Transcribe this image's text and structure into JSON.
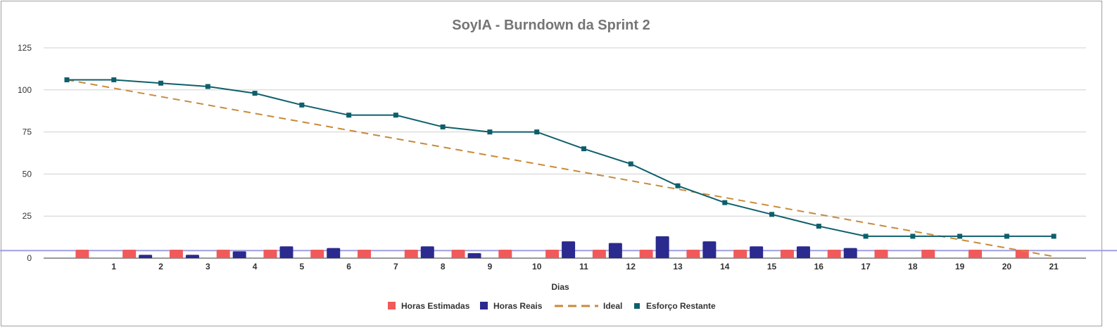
{
  "chart_data": {
    "type": "bar",
    "title": "SoyIA - Burndown da Sprint 2",
    "xlabel": "Dias",
    "ylabel": "",
    "ylim": [
      0,
      125
    ],
    "yticks": [
      0,
      25,
      50,
      75,
      100,
      125
    ],
    "categories": [
      "",
      "1",
      "2",
      "3",
      "4",
      "5",
      "6",
      "7",
      "8",
      "9",
      "10",
      "11",
      "12",
      "13",
      "14",
      "15",
      "16",
      "17",
      "18",
      "19",
      "20",
      "21"
    ],
    "legend_position": "bottom",
    "grid": true,
    "series": [
      {
        "name": "Horas Estimadas",
        "kind": "bar",
        "color": "#f15a5a",
        "values": [
          null,
          5,
          5,
          5,
          5,
          5,
          5,
          5,
          5,
          5,
          5,
          5,
          5,
          5,
          5,
          5,
          5,
          5,
          5,
          5,
          5,
          5
        ]
      },
      {
        "name": "Horas Reais",
        "kind": "bar",
        "color": "#2a2a8f",
        "values": [
          null,
          0,
          2,
          2,
          4,
          7,
          6,
          0,
          7,
          3,
          0,
          10,
          9,
          13,
          10,
          7,
          7,
          6,
          0,
          0,
          0,
          0
        ]
      },
      {
        "name": "Ideal",
        "kind": "dashed-line",
        "color": "#c98a3a",
        "values": [
          106,
          101,
          96,
          91,
          86,
          81,
          76,
          71,
          66,
          61,
          56,
          51,
          46,
          41,
          36,
          31,
          26,
          21,
          16,
          11,
          6,
          1
        ]
      },
      {
        "name": "Esforço Restante",
        "kind": "line-markers",
        "color": "#0e5f6b",
        "values": [
          106,
          106,
          104,
          102,
          98,
          91,
          85,
          85,
          78,
          75,
          75,
          65,
          56,
          43,
          33,
          26,
          19,
          13,
          13,
          13,
          13,
          13
        ]
      }
    ],
    "reference_line": {
      "value": 4.5,
      "color": "#9fa0e0"
    }
  }
}
